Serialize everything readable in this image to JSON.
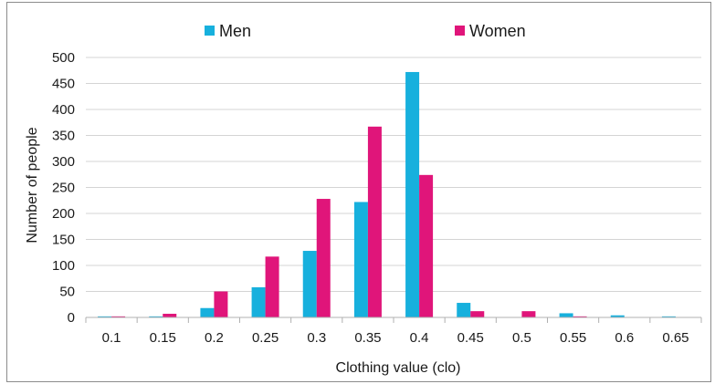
{
  "chart_data": {
    "type": "bar",
    "title": "",
    "xlabel": "Clothing value (clo)",
    "ylabel": "Number of people",
    "categories": [
      "0.1",
      "0.15",
      "0.2",
      "0.25",
      "0.3",
      "0.35",
      "0.4",
      "0.45",
      "0.5",
      "0.55",
      "0.6",
      "0.65"
    ],
    "series": [
      {
        "name": "Men",
        "color": "#17b0dd",
        "values": [
          2,
          2,
          18,
          58,
          128,
          222,
          472,
          28,
          0,
          8,
          4,
          2
        ]
      },
      {
        "name": "Women",
        "color": "#e0157a",
        "values": [
          2,
          7,
          50,
          117,
          228,
          367,
          274,
          12,
          12,
          2,
          0,
          0
        ]
      }
    ],
    "ylim": [
      0,
      500
    ],
    "yticks": [
      0,
      50,
      100,
      150,
      200,
      250,
      300,
      350,
      400,
      450,
      500
    ],
    "grid": true,
    "legend_position": "top-center"
  }
}
